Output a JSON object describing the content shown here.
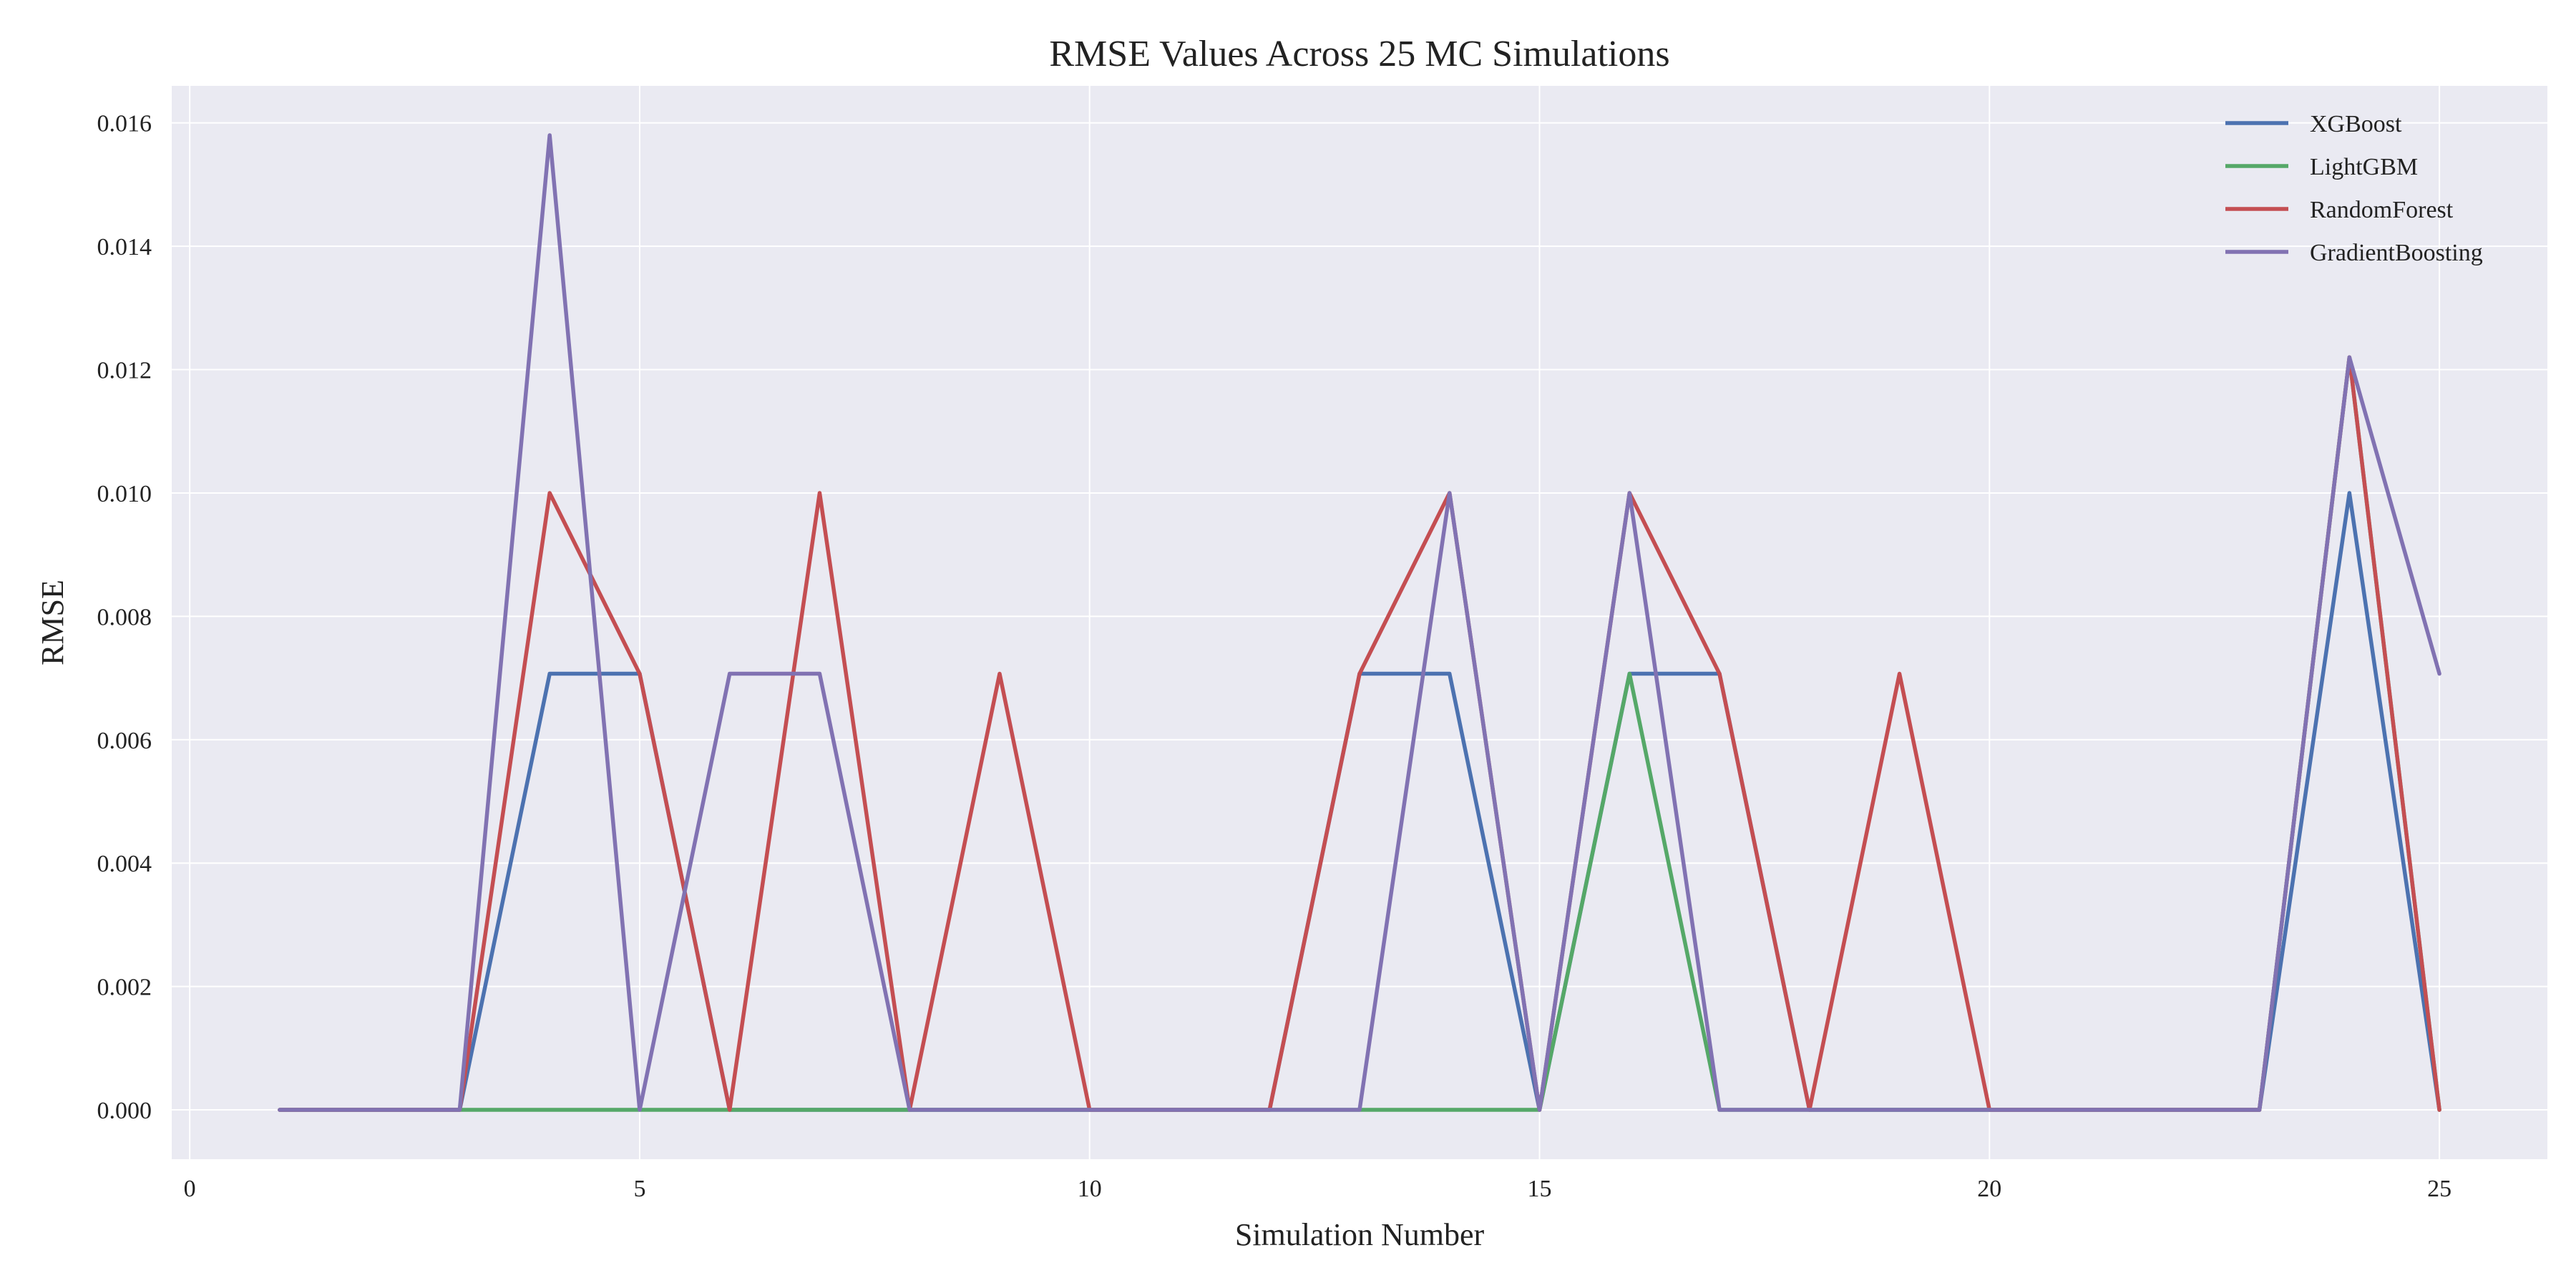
{
  "chart_data": {
    "type": "line",
    "title": "RMSE Values Across 25 MC Simulations",
    "xlabel": "Simulation Number",
    "ylabel": "RMSE",
    "xlim": [
      -0.2,
      26.2
    ],
    "ylim": [
      -0.0008,
      0.0166
    ],
    "xticks": [
      0,
      5,
      10,
      15,
      20,
      25
    ],
    "yticks": [
      0.0,
      0.002,
      0.004,
      0.006,
      0.008,
      0.01,
      0.012,
      0.014,
      0.016
    ],
    "ytick_labels": [
      "0.000",
      "0.002",
      "0.004",
      "0.006",
      "0.008",
      "0.010",
      "0.012",
      "0.014",
      "0.016"
    ],
    "grid": true,
    "legend_position": "top-right",
    "background": "#eaeaf2",
    "x": [
      1,
      2,
      3,
      4,
      5,
      6,
      7,
      8,
      9,
      10,
      11,
      12,
      13,
      14,
      15,
      16,
      17,
      18,
      19,
      20,
      21,
      22,
      23,
      24,
      25
    ],
    "series": [
      {
        "name": "XGBoost",
        "color": "#4c72b0",
        "values": [
          0,
          0,
          0,
          0.00707,
          0.00707,
          0,
          0,
          0,
          0,
          0,
          0,
          0,
          0.00707,
          0.00707,
          0,
          0.00707,
          0.00707,
          0,
          0,
          0,
          0,
          0,
          0,
          0.01,
          0
        ]
      },
      {
        "name": "LightGBM",
        "color": "#55a868",
        "values": [
          0,
          0,
          0,
          0,
          0,
          0,
          0,
          0,
          0,
          0,
          0,
          0,
          0,
          0,
          0,
          0.00707,
          0,
          0,
          0,
          0,
          0,
          0,
          0,
          0.0122,
          0
        ]
      },
      {
        "name": "RandomForest",
        "color": "#c44e52",
        "values": [
          0,
          0,
          0,
          0.01,
          0.00707,
          0,
          0.01,
          0,
          0.00707,
          0,
          0,
          0,
          0.00707,
          0.01,
          0,
          0.01,
          0.00707,
          0,
          0.00707,
          0,
          0,
          0,
          0,
          0.0122,
          0
        ]
      },
      {
        "name": "GradientBoosting",
        "color": "#8172b2",
        "values": [
          0,
          0,
          0,
          0.0158,
          0,
          0.00707,
          0.00707,
          0,
          0,
          0,
          0,
          0,
          0,
          0.01,
          0,
          0.01,
          0,
          0,
          0,
          0,
          0,
          0,
          0,
          0.0122,
          0.00707
        ]
      }
    ]
  }
}
